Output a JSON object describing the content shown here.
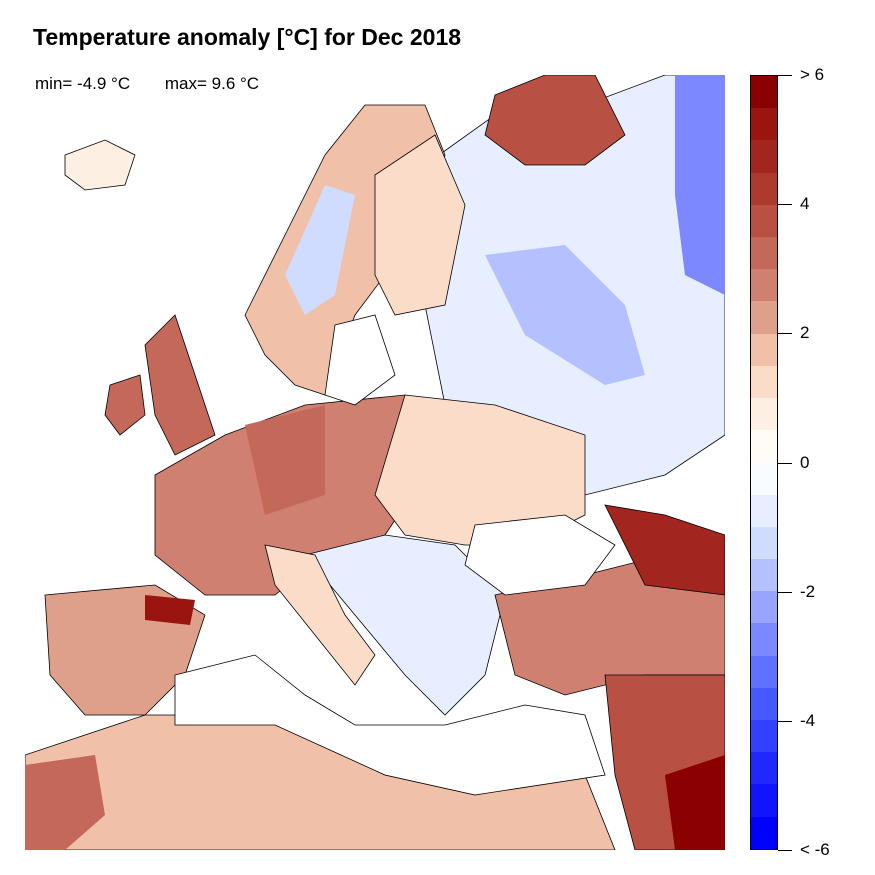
{
  "title": "Temperature anomaly [°C] for Dec 2018",
  "stats": {
    "min_label": "min= -4.9 °C",
    "max_label": "max= 9.6 °C"
  },
  "colorbar": {
    "range": [
      -6,
      6
    ],
    "step": 0.5,
    "tick_labels": [
      "> 6",
      "4",
      "2",
      "0",
      "-2",
      "-4",
      "< -6"
    ],
    "tick_values": [
      6,
      4,
      2,
      0,
      -2,
      -4,
      -6
    ],
    "colors_top_to_bottom": [
      "#8b0000",
      "#9a1410",
      "#a32520",
      "#ad3a2e",
      "#b85043",
      "#c4685a",
      "#d08070",
      "#dea08b",
      "#f0c0a8",
      "#fbdcc8",
      "#fdf0e2",
      "#fffcf6",
      "#f8fcff",
      "#e6eeff",
      "#d0dcff",
      "#b4c0ff",
      "#98a4ff",
      "#7c88ff",
      "#6070ff",
      "#4858ff",
      "#3440ff",
      "#2028ff",
      "#1014ff",
      "#0000ff"
    ]
  }
}
